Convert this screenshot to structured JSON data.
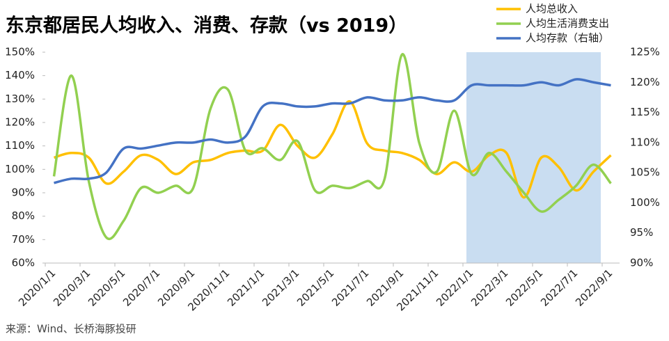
{
  "chart_data": {
    "type": "line",
    "title": "东京都居民人均收入、消费、存款（vs 2019）",
    "source": "来源：Wind、长桥海豚投研",
    "categories": [
      "2020/1/1",
      null,
      "2020/3/1",
      null,
      "2020/5/1",
      null,
      "2020/7/1",
      null,
      "2020/9/1",
      null,
      "2020/11/1",
      null,
      "2021/1/1",
      null,
      "2021/3/1",
      null,
      "2021/5/1",
      null,
      "2021/7/1",
      null,
      "2021/9/1",
      null,
      "2021/11/1",
      null,
      "2022/1/1",
      null,
      "2022/3/1",
      null,
      "2022/5/1",
      null,
      "2022/7/1",
      null,
      "2022/9/1"
    ],
    "series": [
      {
        "name": "人均总收入",
        "color": "#FFC000",
        "values": [
          105,
          107,
          105,
          94,
          99,
          106,
          104,
          98,
          103,
          104,
          107,
          108,
          108,
          119,
          110,
          105,
          115,
          129,
          111,
          108,
          107,
          104,
          98,
          103,
          99,
          106,
          107,
          88,
          105,
          101,
          91,
          99,
          106
        ]
      },
      {
        "name": "人均生活消费支出",
        "color": "#92D050",
        "values": [
          97,
          140,
          95,
          71,
          78,
          92,
          90,
          93,
          92,
          126,
          134,
          108,
          109,
          104,
          112,
          91,
          93,
          92,
          95,
          96,
          149,
          111,
          99,
          125,
          98,
          107,
          99,
          90,
          82,
          87,
          93,
          102,
          94
        ]
      },
      {
        "name": "人均存款（右轴）",
        "color": "#4472C4",
        "axis": "y2",
        "values": [
          103.3,
          104,
          104,
          105,
          109,
          109,
          109.5,
          110,
          110,
          110.5,
          110,
          111,
          116,
          116.5,
          116,
          116,
          116.5,
          116.5,
          117.5,
          117,
          117,
          117.5,
          117,
          117,
          119.5,
          119.5,
          119.5,
          119.5,
          120,
          119.5,
          120.5,
          120,
          119.5
        ]
      }
    ],
    "ylim": [
      60,
      150
    ],
    "yticks": [
      {
        "value": 60,
        "label": "60%"
      },
      {
        "value": 70,
        "label": "70%"
      },
      {
        "value": 80,
        "label": "80%"
      },
      {
        "value": 90,
        "label": "90%"
      },
      {
        "value": 100,
        "label": "100%"
      },
      {
        "value": 110,
        "label": "110%"
      },
      {
        "value": 120,
        "label": "120%"
      },
      {
        "value": 130,
        "label": "130%"
      },
      {
        "value": 140,
        "label": "140%"
      },
      {
        "value": 150,
        "label": "150%"
      }
    ],
    "y2lim": [
      90,
      125
    ],
    "y2ticks": [
      {
        "value": 90,
        "label": "90%"
      },
      {
        "value": 95,
        "label": "95%"
      },
      {
        "value": 100,
        "label": "100%"
      },
      {
        "value": 105,
        "label": "105%"
      },
      {
        "value": 110,
        "label": "110%"
      },
      {
        "value": 115,
        "label": "115%"
      },
      {
        "value": 120,
        "label": "120%"
      },
      {
        "value": 125,
        "label": "125%"
      }
    ]
  }
}
